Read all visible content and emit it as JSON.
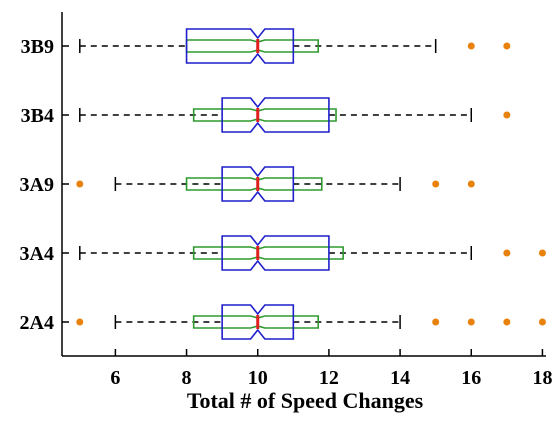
{
  "chart_data": {
    "type": "boxplot",
    "orientation": "horizontal",
    "xlabel": "Total # of Speed Changes",
    "ylabel": "",
    "xlim": [
      4.5,
      18.1
    ],
    "xticks": [
      6,
      8,
      10,
      12,
      14,
      16,
      18
    ],
    "categories": [
      "3B9",
      "3B4",
      "3A9",
      "3A4",
      "2A4"
    ],
    "primary_boxes": [
      {
        "category": "3B9",
        "whisker_low": 5,
        "q1": 8,
        "median": 10,
        "q3": 11,
        "whisker_high": 15,
        "notch_low": 9.8,
        "notch_high": 10.2,
        "outliers": [
          16,
          17
        ]
      },
      {
        "category": "3B4",
        "whisker_low": 5,
        "q1": 9,
        "median": 10,
        "q3": 12,
        "whisker_high": 16,
        "notch_low": 9.8,
        "notch_high": 10.2,
        "outliers": [
          17
        ]
      },
      {
        "category": "3A9",
        "whisker_low": 6,
        "q1": 9,
        "median": 10,
        "q3": 11,
        "whisker_high": 14,
        "notch_low": 9.8,
        "notch_high": 10.2,
        "outliers": [
          5,
          15,
          16
        ]
      },
      {
        "category": "3A4",
        "whisker_low": 5,
        "q1": 9,
        "median": 10,
        "q3": 12,
        "whisker_high": 16,
        "notch_low": 9.8,
        "notch_high": 10.2,
        "outliers": [
          17,
          18
        ]
      },
      {
        "category": "2A4",
        "whisker_low": 6,
        "q1": 9,
        "median": 10,
        "q3": 11,
        "whisker_high": 14,
        "notch_low": 9.8,
        "notch_high": 10.2,
        "outliers": [
          5,
          15,
          16,
          17,
          18
        ]
      }
    ],
    "secondary_boxes": [
      {
        "category": "3B9",
        "q1": 8,
        "q3": 11.7,
        "notch_low": 9.8,
        "notch_high": 10.2
      },
      {
        "category": "3B4",
        "q1": 8.2,
        "q3": 12.2,
        "notch_low": 9.8,
        "notch_high": 10.2
      },
      {
        "category": "3A9",
        "q1": 8.0,
        "q3": 11.8,
        "notch_low": 9.8,
        "notch_high": 10.2
      },
      {
        "category": "3A4",
        "q1": 8.2,
        "q3": 12.4,
        "notch_low": 9.8,
        "notch_high": 10.2
      },
      {
        "category": "2A4",
        "q1": 8.2,
        "q3": 11.7,
        "notch_low": 9.8,
        "notch_high": 10.2
      }
    ],
    "colors": {
      "primary_box": "#1f1fcc",
      "secondary_box": "#2e9a2e",
      "median": "#e02020",
      "whisker": "#000000",
      "outlier": "#e8820c"
    }
  }
}
